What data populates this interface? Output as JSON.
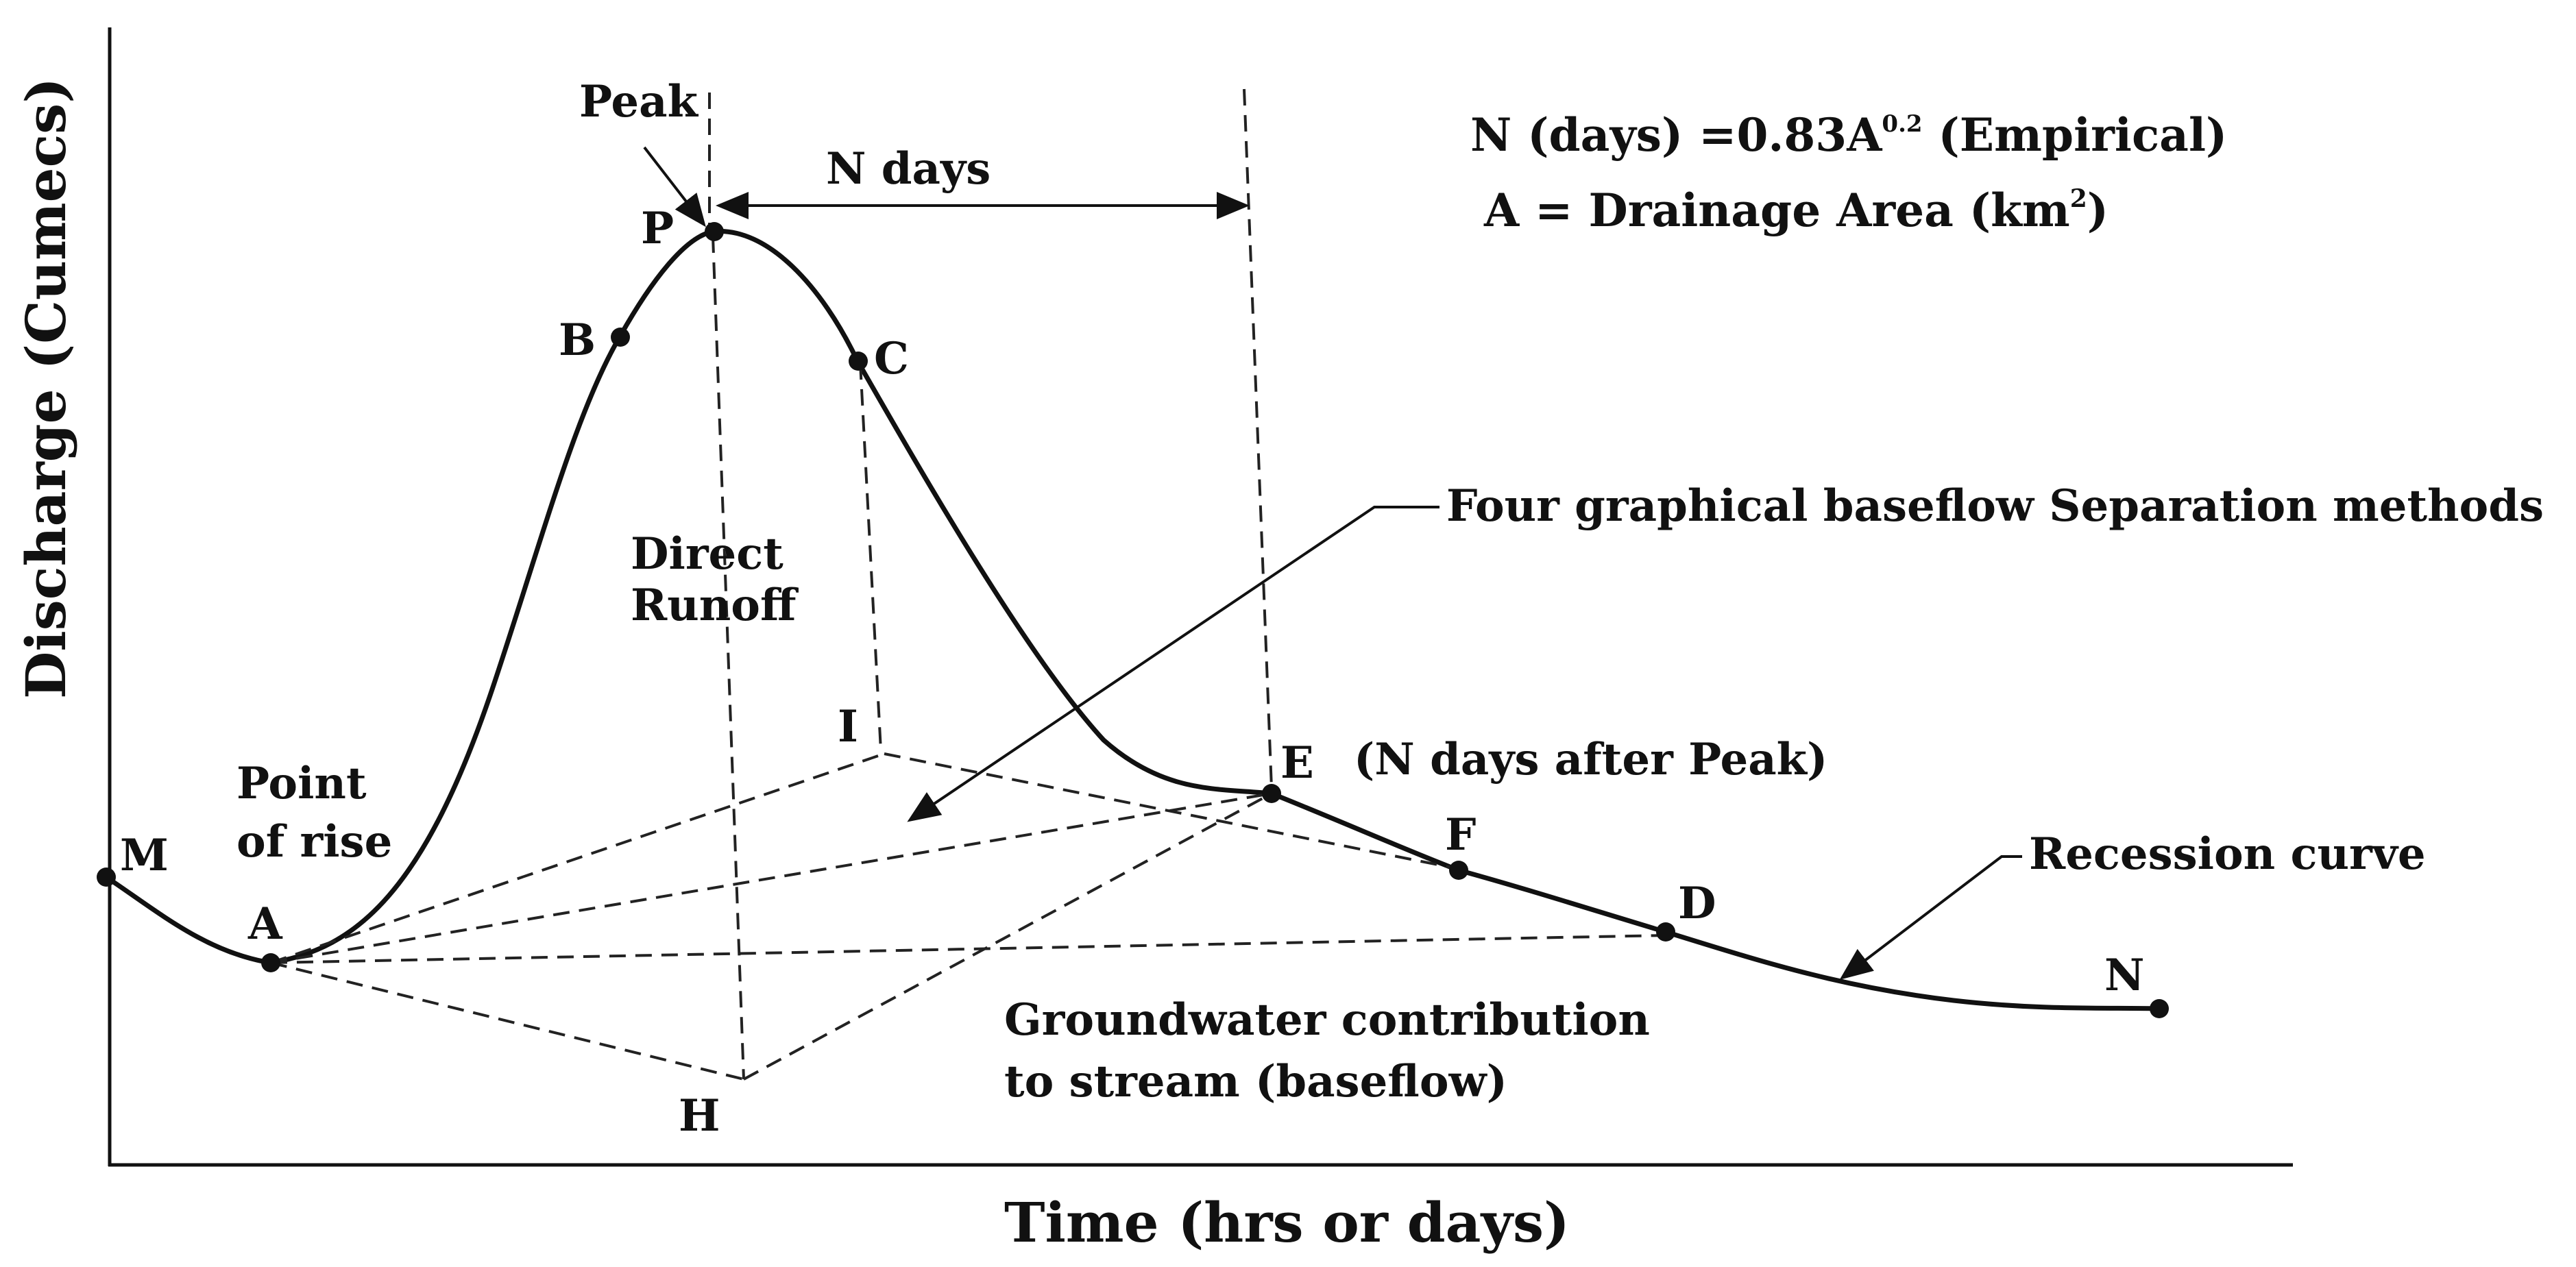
{
  "diagram": {
    "axes": {
      "y_label": "Discharge (Cumecs)",
      "x_label": "Time (hrs or days)"
    },
    "points": {
      "M": "M",
      "A": "A",
      "B": "B",
      "P": "P",
      "C": "C",
      "I": "I",
      "E": "E",
      "F": "F",
      "D": "D",
      "N": "N",
      "H": "H"
    },
    "annotations": {
      "peak": "Peak",
      "n_days": "N days",
      "direct_runoff_line1": "Direct",
      "direct_runoff_line2": "Runoff",
      "point_of_rise_line1": "Point",
      "point_of_rise_line2": "of rise",
      "e_note": "(N days after Peak)",
      "four_methods": "Four graphical baseflow Separation methods",
      "recession_curve": "Recession curve",
      "groundwater_line1": "Groundwater contribution",
      "groundwater_line2": "to stream (baseflow)"
    },
    "formula": {
      "line1_prefix": "N (days) =0.83A",
      "line1_exponent": "0.2",
      "line1_suffix": " (Empirical)",
      "line2_prefix": "A = Drainage Area (km",
      "line2_exponent": "2",
      "line2_suffix": ")"
    }
  }
}
